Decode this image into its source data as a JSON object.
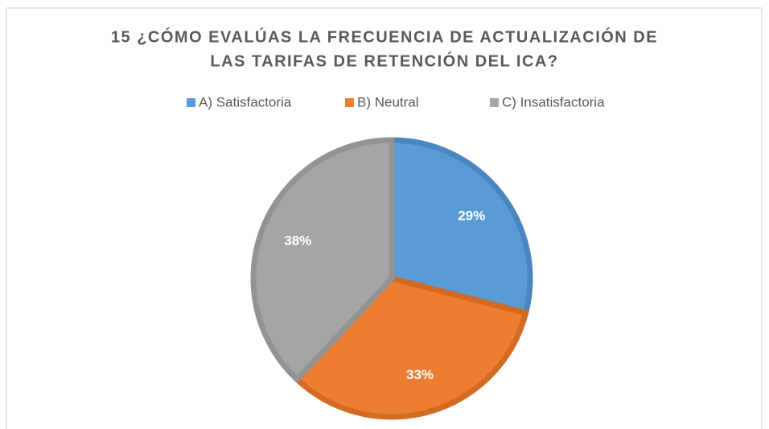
{
  "chart_data": {
    "type": "pie",
    "title": [
      "15 ¿CÓMO EVALÚAS LA FRECUENCIA DE ACTUALIZACIÓN DE",
      "LAS TARIFAS DE RETENCIÓN DEL ICA?"
    ],
    "categories": [
      "A) Satisfactoria",
      "B) Neutral",
      "C) Insatisfactoria"
    ],
    "values": [
      29,
      33,
      38
    ],
    "value_labels": [
      "29%",
      "33%",
      "38%"
    ],
    "colors": [
      "#5b9bd5",
      "#ed7d31",
      "#a5a5a5"
    ],
    "stroke_colors": [
      "#4a86bf",
      "#d26a22",
      "#939393"
    ],
    "legend": "top"
  }
}
